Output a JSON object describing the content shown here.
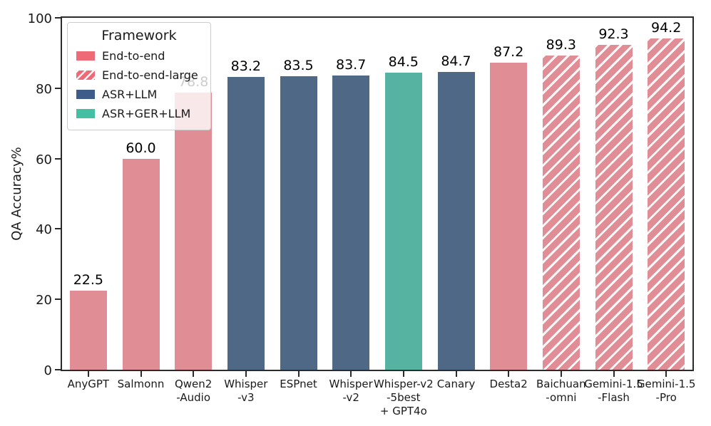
{
  "chart_data": {
    "type": "bar",
    "title": "",
    "xlabel": "",
    "ylabel": "QA Accuracy%",
    "ylim": [
      0,
      100
    ],
    "yticks": [
      0,
      20,
      40,
      60,
      80,
      100
    ],
    "grid": false,
    "legend": {
      "title": "Framework",
      "position": "upper-left",
      "entries": [
        {
          "label": "End-to-end",
          "color": "#ee6a77",
          "hatch": false
        },
        {
          "label": "End-to-end-large",
          "color": "#ee6a77",
          "hatch": true
        },
        {
          "label": "ASR+LLM",
          "color": "#3d5c88",
          "hatch": false
        },
        {
          "label": "ASR+GER+LLM",
          "color": "#43bfa3",
          "hatch": false
        }
      ]
    },
    "group_styles": {
      "End-to-end": {
        "fill": "#e08d95",
        "hatch": false
      },
      "End-to-end-large": {
        "fill": "#e08d95",
        "hatch": true
      },
      "ASR+LLM": {
        "fill": "#4e6885",
        "hatch": false
      },
      "ASR+GER+LLM": {
        "fill": "#57b3a1",
        "hatch": false
      }
    },
    "bars": [
      {
        "label": "AnyGPT",
        "tick_lines": [
          "AnyGPT"
        ],
        "value": 22.5,
        "value_label": "22.5",
        "group": "End-to-end"
      },
      {
        "label": "Salmonn",
        "tick_lines": [
          "Salmonn"
        ],
        "value": 60.0,
        "value_label": "60.0",
        "group": "End-to-end"
      },
      {
        "label": "Qwen2-Audio",
        "tick_lines": [
          "Qwen2",
          "-Audio"
        ],
        "value": 78.8,
        "value_label": "78.8",
        "group": "End-to-end"
      },
      {
        "label": "Whisper-v3",
        "tick_lines": [
          "Whisper",
          "-v3"
        ],
        "value": 83.2,
        "value_label": "83.2",
        "group": "ASR+LLM"
      },
      {
        "label": "ESPnet",
        "tick_lines": [
          "ESPnet"
        ],
        "value": 83.5,
        "value_label": "83.5",
        "group": "ASR+LLM"
      },
      {
        "label": "Whisper-v2",
        "tick_lines": [
          "Whisper",
          "-v2"
        ],
        "value": 83.7,
        "value_label": "83.7",
        "group": "ASR+LLM"
      },
      {
        "label": "Whisper-v2-5best+GPT4o",
        "tick_lines": [
          "Whisper-v2",
          "-5best",
          "+ GPT4o"
        ],
        "value": 84.5,
        "value_label": "84.5",
        "group": "ASR+GER+LLM"
      },
      {
        "label": "Canary",
        "tick_lines": [
          "Canary"
        ],
        "value": 84.7,
        "value_label": "84.7",
        "group": "ASR+LLM"
      },
      {
        "label": "Desta2",
        "tick_lines": [
          "Desta2"
        ],
        "value": 87.2,
        "value_label": "87.2",
        "group": "End-to-end"
      },
      {
        "label": "Baichuan-omni",
        "tick_lines": [
          "Baichuan",
          "-omni"
        ],
        "value": 89.3,
        "value_label": "89.3",
        "group": "End-to-end-large"
      },
      {
        "label": "Gemini-1.5-Flash",
        "tick_lines": [
          "Gemini-1.5",
          "-Flash"
        ],
        "value": 92.3,
        "value_label": "92.3",
        "group": "End-to-end-large"
      },
      {
        "label": "Gemini-1.5-Pro",
        "tick_lines": [
          "Gemini-1.5",
          "-Pro"
        ],
        "value": 94.2,
        "value_label": "94.2",
        "group": "End-to-end-large"
      }
    ]
  }
}
